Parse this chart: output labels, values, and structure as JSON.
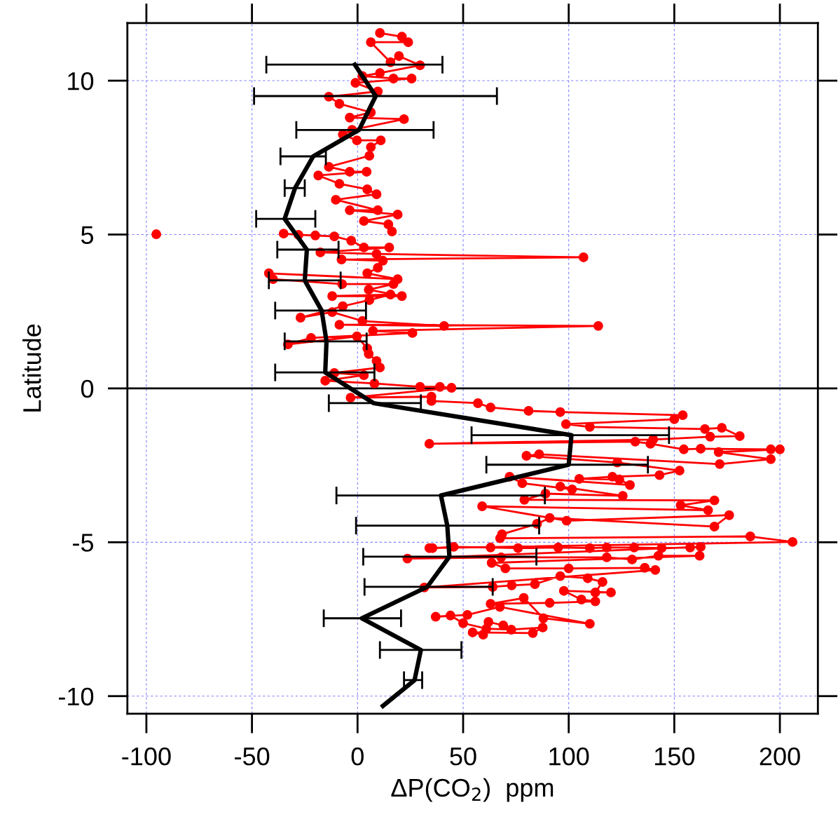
{
  "chart_data": {
    "type": "line",
    "xlabel": "ΔP(CO$_{2}$)  ppm",
    "ylabel": "Latitude",
    "xlim": [
      -109,
      218
    ],
    "ylim": [
      -10.57,
      11.87
    ],
    "xticks": [
      -100,
      -50,
      0,
      50,
      100,
      150,
      200
    ],
    "yticks": [
      -10,
      -5,
      0,
      5,
      10
    ],
    "grid": true,
    "line_style": "solid",
    "ref_lines": [
      {
        "axis": "y",
        "value": 0,
        "color": "#000000",
        "line_style": "solid"
      }
    ],
    "series": [
      {
        "color": "#ff0000",
        "marker": "circle",
        "x": [
          10.6,
          21,
          24,
          6.3,
          15.6,
          19.6,
          29.6,
          10.6,
          2.3,
          17,
          25.6,
          -1,
          9.6,
          -13.6,
          -8.6,
          6.3,
          -3.7,
          22,
          -2.6,
          -7,
          -0.3,
          11,
          6.3,
          5.6,
          -13.6,
          -3.7,
          4.3,
          -18.6,
          -8.6,
          4.6,
          9,
          -10.3,
          9.6,
          -3.7,
          19,
          3,
          14.6,
          16.3,
          null,
          -35,
          -28,
          -20,
          -11,
          -3,
          3,
          15,
          -17.6,
          9,
          107,
          -7.6,
          12,
          9.6,
          4.6,
          19,
          -42,
          -40,
          -7.3,
          17,
          5.3,
          21,
          -12,
          15.6,
          5.6,
          -7,
          -27,
          -12,
          2.3,
          41,
          -8.6,
          114,
          7.3,
          26,
          -22,
          -33,
          -0.3,
          4.6,
          5.3,
          9,
          10.6,
          -11,
          3,
          -15.3,
          8,
          29.6,
          39,
          44.5,
          -3.3,
          35,
          35,
          57,
          63,
          81,
          96,
          154,
          150,
          98.7,
          110,
          164.5,
          172.5,
          181,
          167,
          140,
          34,
          131.5,
          138.7,
          154.5,
          162.5,
          195.7,
          200,
          171,
          195.7,
          171.5,
          86,
          80,
          123,
          152.5,
          143,
          120.7,
          105,
          124,
          129,
          72,
          78,
          101.6,
          96,
          125.6,
          89,
          79,
          169,
          153,
          166,
          59,
          99,
          176,
          169,
          91,
          85,
          68.4,
          67.5,
          186,
          206,
          34,
          35.5,
          45.5,
          63,
          76,
          95,
          110,
          118,
          131,
          144,
          157.5,
          162.5,
          23.6,
          68,
          118,
          130,
          142.5,
          162,
          63.5,
          70,
          100,
          136,
          141,
          31.6,
          64,
          73,
          84,
          96,
          109,
          116,
          112.6,
          120,
          97.7,
          106,
          112.6,
          91,
          63,
          78.7,
          88,
          110,
          67.4,
          52,
          37,
          44,
          50,
          61,
          72.8,
          87.7,
          83,
          54.5,
          59.5,
          62,
          69
        ],
        "values": [
          11.55,
          11.43,
          11.25,
          11.25,
          10.6,
          10.8,
          10.5,
          10.25,
          10.15,
          10.07,
          10.07,
          9.93,
          9.65,
          9.48,
          9.25,
          8.97,
          8.8,
          8.75,
          8.4,
          8.25,
          8.06,
          8.06,
          7.84,
          7.56,
          7.2,
          7.04,
          7.04,
          6.92,
          6.65,
          6.47,
          6.31,
          6.13,
          5.79,
          5.79,
          5.65,
          5.44,
          5.33,
          5.1,
          null,
          5.03,
          4.99,
          4.97,
          4.94,
          4.8,
          4.58,
          4.58,
          4.42,
          4.37,
          4.26,
          4.19,
          4.15,
          3.92,
          3.74,
          3.55,
          3.74,
          3.55,
          3.39,
          3.39,
          3.21,
          3.0,
          3.0,
          3.05,
          2.87,
          2.67,
          2.3,
          2.48,
          2.19,
          2.03,
          2.07,
          2.03,
          1.87,
          1.8,
          1.64,
          1.43,
          1.69,
          1.3,
          1.12,
          0.89,
          0.68,
          0.5,
          0.43,
          0.25,
          0.16,
          0.05,
          0.05,
          0.02,
          -0.3,
          -0.27,
          -0.41,
          -0.48,
          -0.62,
          -0.73,
          -0.77,
          -0.87,
          -1.0,
          -1.16,
          -1.25,
          -1.32,
          -1.28,
          -1.55,
          -1.57,
          -1.66,
          -1.8,
          -1.73,
          -1.8,
          -1.98,
          -1.96,
          -1.98,
          -1.98,
          -2.07,
          -2.3,
          -2.46,
          -2.14,
          -2.19,
          -2.41,
          -2.67,
          -2.82,
          -2.87,
          -2.94,
          -2.96,
          -3.14,
          -2.87,
          -3.08,
          -3.28,
          -3.19,
          -3.49,
          -3.42,
          -3.62,
          -3.64,
          -3.8,
          -3.96,
          -3.83,
          -4.3,
          -4.12,
          -4.49,
          -4.21,
          -4.4,
          -4.74,
          -4.87,
          -4.81,
          -4.99,
          -5.19,
          -5.19,
          -5.15,
          -5.17,
          -5.19,
          -5.17,
          -5.19,
          -5.17,
          -5.17,
          -5.19,
          -5.17,
          -5.15,
          -5.53,
          -5.49,
          -5.49,
          -5.56,
          -5.44,
          -5.44,
          -5.67,
          -5.85,
          -5.85,
          -5.83,
          -5.9,
          -6.47,
          -6.45,
          -6.4,
          -6.36,
          -6.1,
          -6.17,
          -6.29,
          -6.63,
          -6.63,
          -6.58,
          -6.86,
          -6.92,
          -6.97,
          -7.0,
          -6.81,
          -7.47,
          -7.65,
          -7.1,
          -7.36,
          -7.42,
          -7.38,
          -7.63,
          -7.81,
          -7.84,
          -7.77,
          -7.95,
          -7.93,
          -8.0,
          -7.59,
          -7.7
        ]
      },
      {
        "color": "#ff0000",
        "marker": "circle",
        "x": [
          -95.3
        ],
        "values": [
          5.01
        ]
      },
      {
        "color": "#000000",
        "marker": "none",
        "x": [
          -1.3,
          8.6,
          0.7,
          -21,
          -29.6,
          -34.5,
          -24,
          -25,
          -17,
          -14.7,
          -15.3,
          7.6,
          101.3,
          100,
          39.5,
          42.5,
          43.5,
          33,
          2,
          30,
          27,
          12
        ],
        "values": [
          10.52,
          9.5,
          8.4,
          7.54,
          6.51,
          5.51,
          4.51,
          3.51,
          2.53,
          1.53,
          0.52,
          -0.48,
          -1.52,
          -2.48,
          -3.48,
          -4.46,
          -5.47,
          -6.45,
          -7.47,
          -8.5,
          -9.48,
          -10.32
        ],
        "xerrors": [
          [
            -43.2,
            40.2
          ],
          [
            -49,
            66
          ],
          [
            -29,
            36
          ],
          [
            -36.5,
            -15
          ],
          [
            -34.5,
            -25
          ],
          [
            -48,
            -20
          ],
          [
            -38,
            -9
          ],
          [
            -42,
            -8
          ],
          [
            -39,
            4
          ],
          [
            -34.5,
            4.3
          ],
          [
            -39,
            8
          ],
          [
            -13.6,
            30
          ],
          [
            54,
            147.5
          ],
          [
            61,
            137.5
          ],
          [
            -10,
            88.7
          ],
          [
            -0.7,
            86
          ],
          [
            2.7,
            84.7
          ],
          [
            3.3,
            64
          ],
          [
            -16,
            20.6
          ],
          [
            10.6,
            49.2
          ],
          [
            22,
            30.6
          ],
          null
        ]
      }
    ]
  }
}
